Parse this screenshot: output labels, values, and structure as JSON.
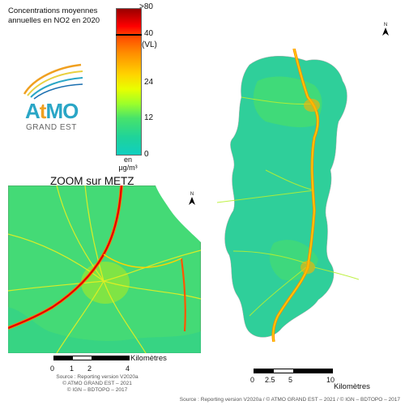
{
  "title": {
    "line1": "Concentrations moyennes",
    "line2": "annuelles en NO2 en 2020"
  },
  "legend": {
    "ticks": [
      ">80",
      "40",
      "(VL)",
      "24",
      "12",
      "0"
    ],
    "unit_line1": "en",
    "unit_line2": "µg/m³",
    "colors": [
      "#990000",
      "#ff0000",
      "#ff8c00",
      "#ffd400",
      "#9cff2a",
      "#1fd39a",
      "#10cfc0"
    ]
  },
  "logo": {
    "brand_a": "A",
    "brand_t": "t",
    "brand_mo": "MO",
    "subtitle": "GRAND EST"
  },
  "zoom": {
    "title": "ZOOM sur METZ",
    "north": "N",
    "scale": {
      "ticks": [
        "0",
        "1",
        "2",
        "4"
      ],
      "unit": "Kilomètres"
    },
    "source_lines": [
      "Source : Reporting version V2020a",
      "© ATMO GRAND EST – 2021",
      "© IGN – BDTOPO – 2017"
    ]
  },
  "main": {
    "north": "N",
    "scale": {
      "ticks": [
        "0",
        "2.5",
        "5",
        "10"
      ],
      "unit": "Kilomètres"
    }
  },
  "footer": "Source : Reporting version V2020a / © ATMO GRAND EST – 2021 / © IGN – BDTOPO – 2017"
}
